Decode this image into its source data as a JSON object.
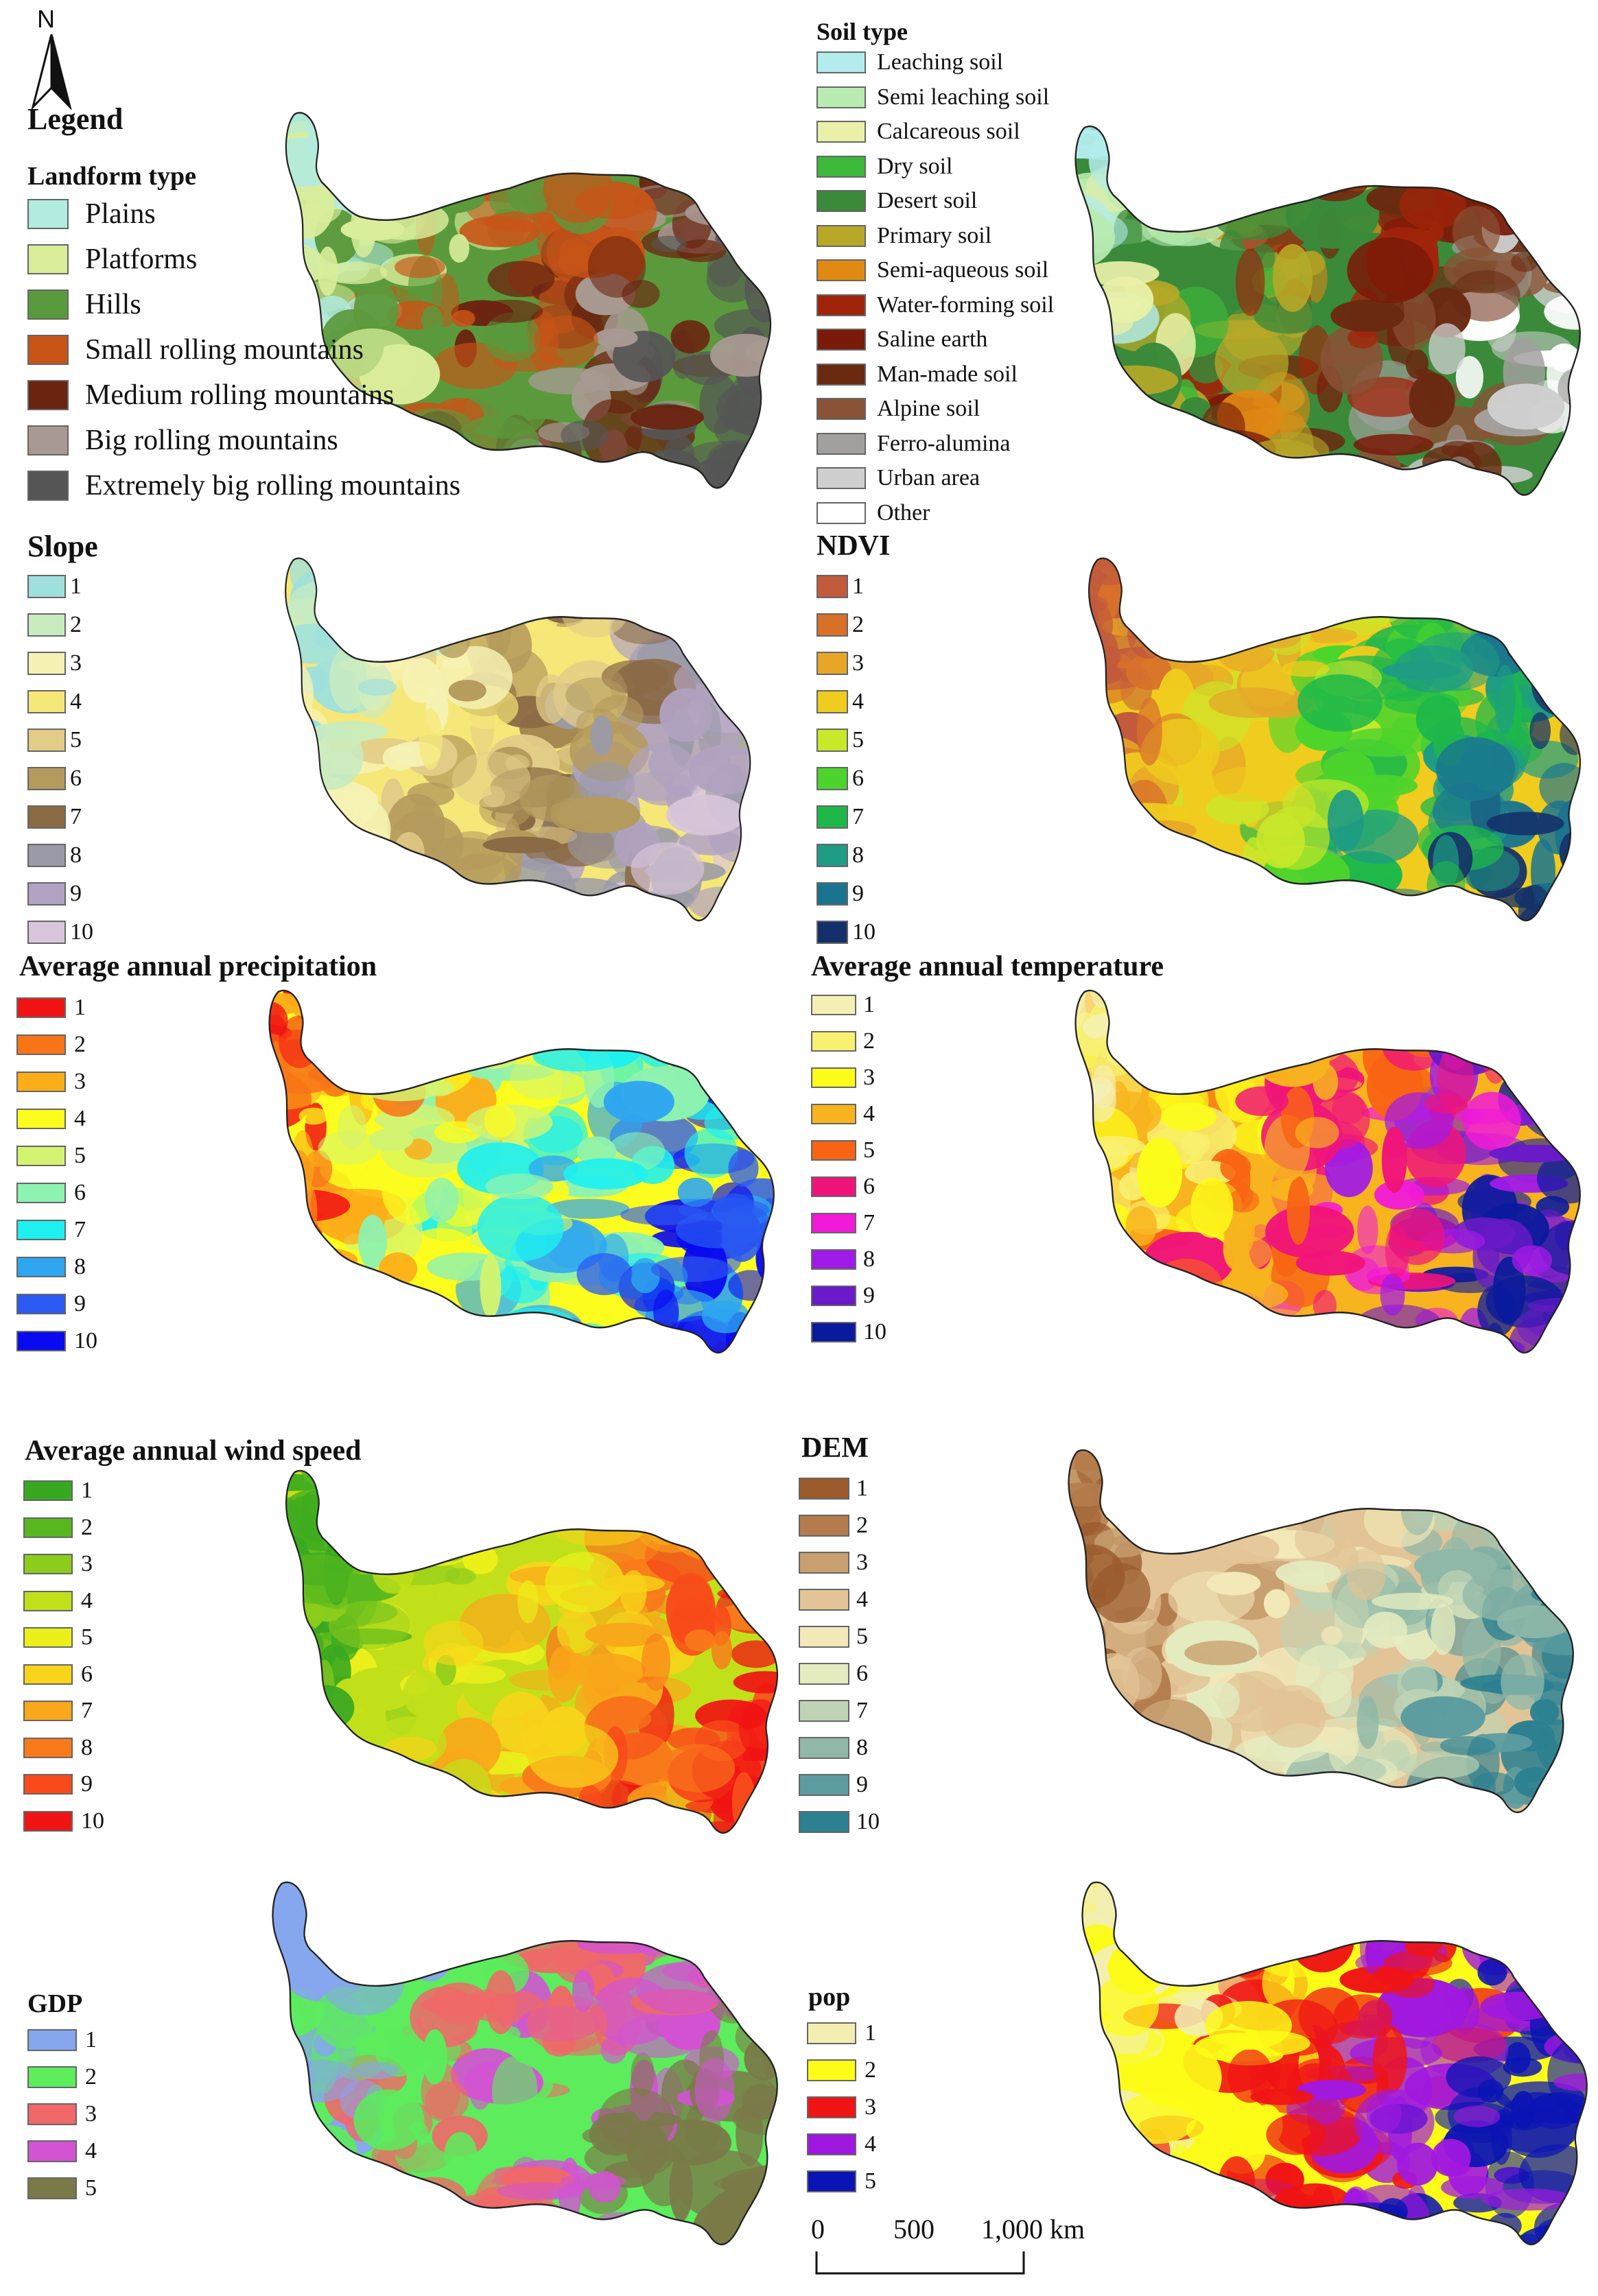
{
  "north": {
    "label": "N"
  },
  "legend_heading": "Legend",
  "panels": [
    {
      "id": "landform",
      "title": "Landform type",
      "items": [
        {
          "label": "Plains",
          "color": "#b2ebe0"
        },
        {
          "label": "Platforms",
          "color": "#d9ed9a"
        },
        {
          "label": "Hills",
          "color": "#5b9a3c"
        },
        {
          "label": "Small rolling mountains",
          "color": "#c85418"
        },
        {
          "label": "Medium rolling mountains",
          "color": "#6b2410"
        },
        {
          "label": "Big rolling mountains",
          "color": "#a89a92"
        },
        {
          "label": "Extremely big rolling mountains",
          "color": "#555555"
        }
      ]
    },
    {
      "id": "soil",
      "title": "Soil type",
      "items": [
        {
          "label": "Leaching soil",
          "color": "#b3ecec"
        },
        {
          "label": "Semi leaching soil",
          "color": "#b8ecb0"
        },
        {
          "label": "Calcareous soil",
          "color": "#eaf0a8"
        },
        {
          "label": "Dry soil",
          "color": "#3cb83a"
        },
        {
          "label": "Desert soil",
          "color": "#3a8a3a"
        },
        {
          "label": "Primary soil",
          "color": "#b8a828"
        },
        {
          "label": "Semi-aqueous soil",
          "color": "#e08a14"
        },
        {
          "label": "Water-forming soil",
          "color": "#a0240a"
        },
        {
          "label": "Saline earth",
          "color": "#7a1a08"
        },
        {
          "label": "Man-made soil",
          "color": "#6a2a10"
        },
        {
          "label": "Alpine soil",
          "color": "#8a5236"
        },
        {
          "label": "Ferro-alumina",
          "color": "#a2a09e"
        },
        {
          "label": "Urban area",
          "color": "#cfcfcf"
        },
        {
          "label": "Other",
          "color": "#ffffff"
        }
      ]
    },
    {
      "id": "slope",
      "title": "Slope",
      "items": [
        {
          "label": "1",
          "color": "#9fe0dc"
        },
        {
          "label": "2",
          "color": "#c8ecc0"
        },
        {
          "label": "3",
          "color": "#f6f2b4"
        },
        {
          "label": "4",
          "color": "#f6e878"
        },
        {
          "label": "5",
          "color": "#e2cc88"
        },
        {
          "label": "6",
          "color": "#b49a5c"
        },
        {
          "label": "7",
          "color": "#8a6a44"
        },
        {
          "label": "8",
          "color": "#9a9aa8"
        },
        {
          "label": "9",
          "color": "#b0a2c0"
        },
        {
          "label": "10",
          "color": "#d8c6dc"
        }
      ]
    },
    {
      "id": "ndvi",
      "title": "NDVI",
      "items": [
        {
          "label": "1",
          "color": "#c25a3c"
        },
        {
          "label": "2",
          "color": "#d8702a"
        },
        {
          "label": "3",
          "color": "#e6a628"
        },
        {
          "label": "4",
          "color": "#f0cc1e"
        },
        {
          "label": "5",
          "color": "#c8e82a"
        },
        {
          "label": "6",
          "color": "#4cd42c"
        },
        {
          "label": "7",
          "color": "#1eb84a"
        },
        {
          "label": "8",
          "color": "#1e9c84"
        },
        {
          "label": "9",
          "color": "#1a7490"
        },
        {
          "label": "10",
          "color": "#14306a"
        }
      ]
    },
    {
      "id": "precip",
      "title": "Average annual precipitation",
      "items": [
        {
          "label": "1",
          "color": "#f21414"
        },
        {
          "label": "2",
          "color": "#f87418"
        },
        {
          "label": "3",
          "color": "#fcae18"
        },
        {
          "label": "4",
          "color": "#fcfc1e"
        },
        {
          "label": "5",
          "color": "#d2f470"
        },
        {
          "label": "6",
          "color": "#8ef2b0"
        },
        {
          "label": "7",
          "color": "#1ef0f0"
        },
        {
          "label": "8",
          "color": "#2ea6f0"
        },
        {
          "label": "9",
          "color": "#2a5af2"
        },
        {
          "label": "10",
          "color": "#0a0af0"
        }
      ]
    },
    {
      "id": "temp",
      "title": "Average annual temperature",
      "items": [
        {
          "label": "1",
          "color": "#f4f0b4"
        },
        {
          "label": "2",
          "color": "#f8f070"
        },
        {
          "label": "3",
          "color": "#fcfc1a"
        },
        {
          "label": "4",
          "color": "#f8b41e"
        },
        {
          "label": "5",
          "color": "#f86414"
        },
        {
          "label": "6",
          "color": "#f0147a"
        },
        {
          "label": "7",
          "color": "#f01ad8"
        },
        {
          "label": "8",
          "color": "#a01ae8"
        },
        {
          "label": "9",
          "color": "#6a1ac8"
        },
        {
          "label": "10",
          "color": "#0a1a9c"
        }
      ]
    },
    {
      "id": "wind",
      "title": "Average annual wind speed",
      "items": [
        {
          "label": "1",
          "color": "#38a820"
        },
        {
          "label": "2",
          "color": "#56b81e"
        },
        {
          "label": "3",
          "color": "#8ccc1c"
        },
        {
          "label": "4",
          "color": "#c2e01a"
        },
        {
          "label": "5",
          "color": "#ecf01a"
        },
        {
          "label": "6",
          "color": "#f8d41a"
        },
        {
          "label": "7",
          "color": "#f8a81a"
        },
        {
          "label": "8",
          "color": "#f87a1a"
        },
        {
          "label": "9",
          "color": "#f84a1a"
        },
        {
          "label": "10",
          "color": "#f01414"
        }
      ]
    },
    {
      "id": "dem",
      "title": "DEM",
      "items": [
        {
          "label": "1",
          "color": "#9a5a2c"
        },
        {
          "label": "2",
          "color": "#b47c4c"
        },
        {
          "label": "3",
          "color": "#c8a070"
        },
        {
          "label": "4",
          "color": "#e2c496"
        },
        {
          "label": "5",
          "color": "#f2e8b8"
        },
        {
          "label": "6",
          "color": "#e4ecc0"
        },
        {
          "label": "7",
          "color": "#bed4b4"
        },
        {
          "label": "8",
          "color": "#90b8a8"
        },
        {
          "label": "9",
          "color": "#5c9ca0"
        },
        {
          "label": "10",
          "color": "#2c8090"
        }
      ]
    },
    {
      "id": "gdp",
      "title": "GDP",
      "items": [
        {
          "label": "1",
          "color": "#86a6ee"
        },
        {
          "label": "2",
          "color": "#5cec5c"
        },
        {
          "label": "3",
          "color": "#f06868"
        },
        {
          "label": "4",
          "color": "#d254d2"
        },
        {
          "label": "5",
          "color": "#7a7a48"
        }
      ]
    },
    {
      "id": "pop",
      "title": "pop",
      "items": [
        {
          "label": "1",
          "color": "#f2eeb2"
        },
        {
          "label": "2",
          "color": "#fcfc18"
        },
        {
          "label": "3",
          "color": "#f01414"
        },
        {
          "label": "4",
          "color": "#a018e0"
        },
        {
          "label": "5",
          "color": "#0a14b4"
        }
      ]
    }
  ],
  "scale_bar": {
    "ticks": [
      "0",
      "500",
      "1,000 km"
    ]
  }
}
